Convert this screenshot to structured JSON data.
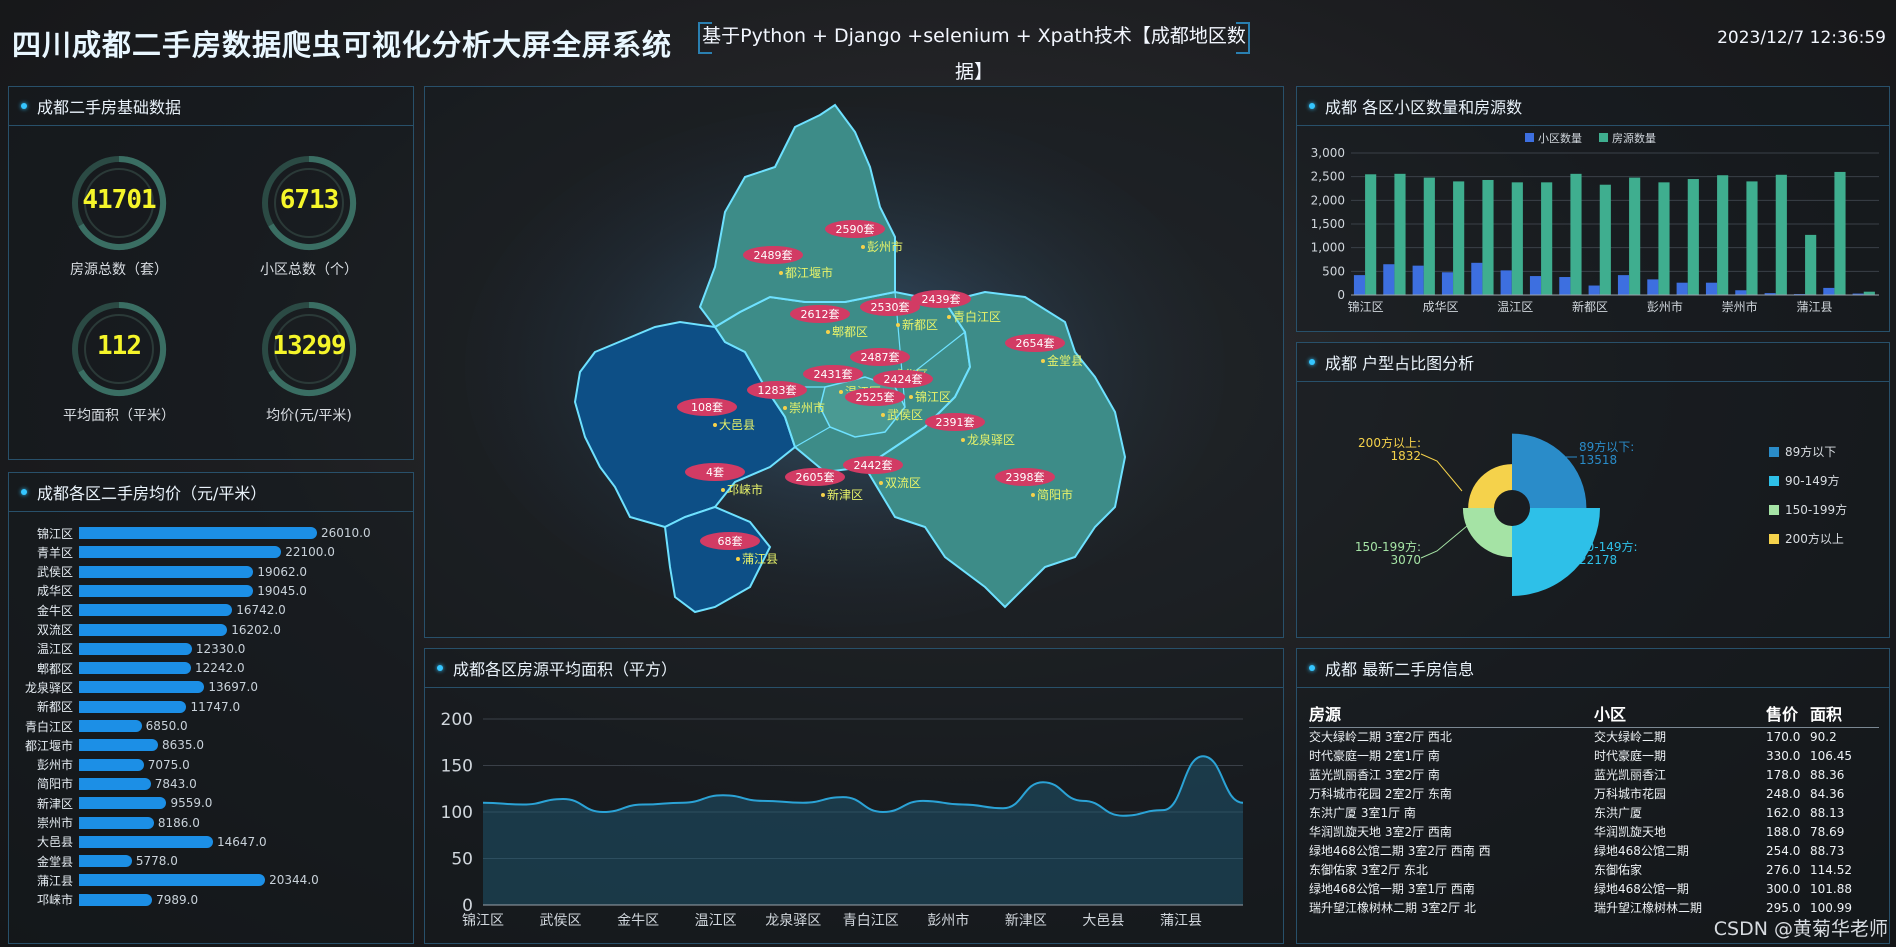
{
  "header": {
    "title": "四川成都二手房数据爬虫可视化分析大屏全屏系统",
    "subtitle": "基于Python + Django +selenium + Xpath技术【成都地区数据】",
    "datetime": "2023/12/7 12:36:59"
  },
  "basic": {
    "title": "成都二手房基础数据",
    "kpis": [
      {
        "value": "41701",
        "label": "房源总数（套）"
      },
      {
        "value": "6713",
        "label": "小区总数（个）"
      },
      {
        "value": "112",
        "label": "平均面积（平米）"
      },
      {
        "value": "13299",
        "label": "均价(元/平米)"
      }
    ]
  },
  "price": {
    "title": "成都各区二手房均价（元/平米）",
    "items": [
      {
        "name": "锦江区",
        "value": 26010.0,
        "label": "26010.0"
      },
      {
        "name": "青羊区",
        "value": 22100.0,
        "label": "22100.0"
      },
      {
        "name": "武侯区",
        "value": 19062.0,
        "label": "19062.0"
      },
      {
        "name": "成华区",
        "value": 19045.0,
        "label": "19045.0"
      },
      {
        "name": "金牛区",
        "value": 16742.0,
        "label": "16742.0"
      },
      {
        "name": "双流区",
        "value": 16202.0,
        "label": "16202.0"
      },
      {
        "name": "温江区",
        "value": 12330.0,
        "label": "12330.0"
      },
      {
        "name": "郫都区",
        "value": 12242.0,
        "label": "12242.0"
      },
      {
        "name": "龙泉驿区",
        "value": 13697.0,
        "label": "13697.0"
      },
      {
        "name": "新都区",
        "value": 11747.0,
        "label": "11747.0"
      },
      {
        "name": "青白江区",
        "value": 6850.0,
        "label": "6850.0"
      },
      {
        "name": "都江堰市",
        "value": 8635.0,
        "label": "8635.0"
      },
      {
        "name": "彭州市",
        "value": 7075.0,
        "label": "7075.0"
      },
      {
        "name": "简阳市",
        "value": 7843.0,
        "label": "7843.0"
      },
      {
        "name": "新津区",
        "value": 9559.0,
        "label": "9559.0"
      },
      {
        "name": "崇州市",
        "value": 8186.0,
        "label": "8186.0"
      },
      {
        "name": "大邑县",
        "value": 14647.0,
        "label": "14647.0"
      },
      {
        "name": "金堂县",
        "value": 5778.0,
        "label": "5778.0"
      },
      {
        "name": "蒲江县",
        "value": 20344.0,
        "label": "20344.0"
      },
      {
        "name": "邛崃市",
        "value": 7989.0,
        "label": "7989.0"
      }
    ]
  },
  "map": {
    "labels": [
      {
        "count": "2590套",
        "name": "彭州市"
      },
      {
        "count": "2489套",
        "name": "都江堰市"
      },
      {
        "count": "2612套",
        "name": "郫都区"
      },
      {
        "count": "2530套",
        "name": "新都区"
      },
      {
        "count": "2439套",
        "name": "青白江区"
      },
      {
        "count": "2654套",
        "name": "金堂县"
      },
      {
        "count": "2487套",
        "name": "成华区"
      },
      {
        "count": "2431套",
        "name": "温江区"
      },
      {
        "count": "1283套",
        "name": "崇州市"
      },
      {
        "count": "2424套",
        "name": "锦江区"
      },
      {
        "count": "2525套",
        "name": "武侯区"
      },
      {
        "count": "2391套",
        "name": "龙泉驿区"
      },
      {
        "count": "108套",
        "name": "大邑县"
      },
      {
        "count": "4套",
        "name": "邛崃市"
      },
      {
        "count": "2605套",
        "name": "新津区"
      },
      {
        "count": "2442套",
        "name": "双流区"
      },
      {
        "count": "2398套",
        "name": "简阳市"
      },
      {
        "count": "68套",
        "name": "蒲江县"
      }
    ]
  },
  "area": {
    "title": "成都各区房源平均面积（平方）",
    "chart_data": {
      "type": "area",
      "categories": [
        "锦江区",
        "青羊区",
        "武侯区",
        "成华区",
        "金牛区",
        "双流区",
        "温江区",
        "郫都区",
        "龙泉驿区",
        "新都区",
        "青白江区",
        "都江堰市",
        "彭州市",
        "简阳市",
        "新津区",
        "崇州市",
        "大邑县",
        "金堂县",
        "蒲江县",
        "邛崃市"
      ],
      "tick_labels": [
        "锦江区",
        "武侯区",
        "金牛区",
        "温江区",
        "龙泉驿区",
        "青白江区",
        "彭州市",
        "新津区",
        "大邑县",
        "蒲江县"
      ],
      "values": [
        110,
        108,
        114,
        100,
        108,
        110,
        118,
        112,
        110,
        116,
        100,
        112,
        108,
        104,
        132,
        112,
        96,
        102,
        160,
        110
      ],
      "ylim": [
        0,
        200
      ],
      "yticks": [
        "0",
        "50",
        "100",
        "150",
        "200"
      ],
      "color": "#2ba3d6"
    }
  },
  "count": {
    "title": "成都 各区小区数量和房源数",
    "chart_data": {
      "type": "bar",
      "categories": [
        "锦江区",
        "青羊区",
        "武侯区",
        "成华区",
        "金牛区",
        "温江区",
        "郫都区",
        "新都区",
        "龙泉驿区",
        "双流区",
        "彭州市",
        "都江堰市",
        "青白江区",
        "崇州市",
        "金堂县",
        "新津区",
        "蒲江县",
        "简阳市"
      ],
      "tick_labels": [
        "锦江区",
        "成华区",
        "温江区",
        "新都区",
        "彭州市",
        "崇州市",
        "蒲江县"
      ],
      "series": [
        {
          "name": "小区数量",
          "color": "#3d6fe0",
          "values": [
            420,
            650,
            620,
            480,
            680,
            520,
            400,
            380,
            200,
            420,
            330,
            260,
            260,
            100,
            40,
            20,
            150,
            30
          ]
        },
        {
          "name": "房源数量",
          "color": "#3fae8f",
          "values": [
            2550,
            2560,
            2480,
            2400,
            2430,
            2380,
            2380,
            2560,
            2330,
            2480,
            2380,
            2450,
            2530,
            2400,
            2540,
            1270,
            2600,
            70
          ]
        }
      ],
      "ylim": [
        0,
        3000
      ],
      "yticks": [
        "0",
        "500",
        "1,000",
        "1,500",
        "2,000",
        "2,500",
        "3,000"
      ]
    }
  },
  "pie": {
    "title": "成都 户型占比图分析",
    "chart_data": {
      "type": "pie",
      "categories": [
        "89方以下",
        "90-149方",
        "150-199方",
        "200方以上"
      ],
      "values": [
        13518,
        22178,
        3070,
        1832
      ],
      "colors": [
        "#2a8cc9",
        "#2ec0e8",
        "#a5e3a5",
        "#f5d24b"
      ],
      "labels": [
        {
          "name": "89方以下:",
          "value": "13518"
        },
        {
          "name": "90-149方:",
          "value": "22178"
        },
        {
          "name": "150-199方:",
          "value": "3070"
        },
        {
          "name": "200方以上:",
          "value": "1832"
        }
      ]
    }
  },
  "latest": {
    "title": "成都 最新二手房信息",
    "headers": [
      "房源",
      "小区",
      "售价",
      "面积"
    ],
    "rows": [
      [
        "交大绿岭二期 3室2厅 西北",
        "交大绿岭二期",
        "170.0",
        "90.2"
      ],
      [
        "时代豪庭一期 2室1厅 南",
        "时代豪庭一期",
        "330.0",
        "106.45"
      ],
      [
        "蓝光凯丽香江 3室2厅 南",
        "蓝光凯丽香江",
        "178.0",
        "88.36"
      ],
      [
        "万科城市花园 2室2厅 东南",
        "万科城市花园",
        "248.0",
        "84.36"
      ],
      [
        "东洪广厦 3室1厅 南",
        "东洪广厦",
        "162.0",
        "88.13"
      ],
      [
        "华润凯旋天地 3室2厅 西南",
        "华润凯旋天地",
        "188.0",
        "78.69"
      ],
      [
        "绿地468公馆二期 3室2厅 西南 西",
        "绿地468公馆二期",
        "254.0",
        "88.73"
      ],
      [
        "东御佑家 3室2厅 东北",
        "东御佑家",
        "276.0",
        "114.52"
      ],
      [
        "绿地468公馆一期 3室1厅 西南",
        "绿地468公馆一期",
        "300.0",
        "101.88"
      ],
      [
        "瑞升望江橡树林二期 3室2厅 北",
        "瑞升望江橡树林二期",
        "295.0",
        "100.99"
      ]
    ]
  },
  "watermark": "CSDN @黄菊华老师"
}
